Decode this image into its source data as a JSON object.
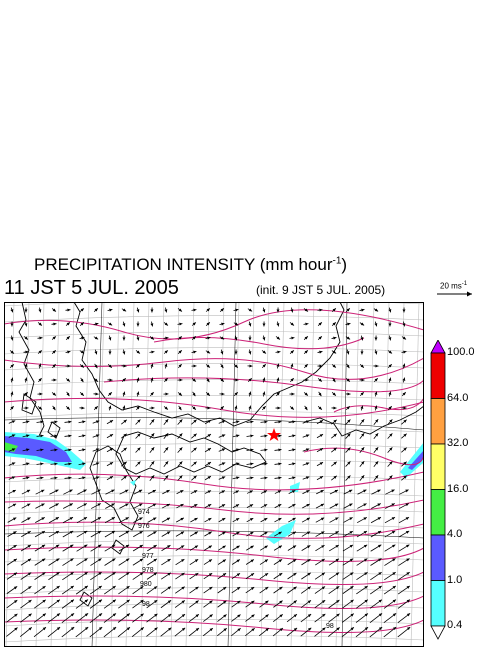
{
  "header": {
    "title": "PRECIPITATION INTENSITY (mm hour",
    "title_exp": "-1",
    "title_close": ")",
    "valid_time": "11 JST 5 JUL. 2005",
    "init_time": "(init. 9 JST 5 JUL. 2005)"
  },
  "wind_reference": {
    "label": "20 ms",
    "label_exp": "-1"
  },
  "colorbar": {
    "levels": [
      "100.0",
      "64.0",
      "32.0",
      "16.0",
      "4.0",
      "1.0",
      "0.4"
    ],
    "colors": [
      "#ee0000",
      "#ffa040",
      "#ffff66",
      "#44ee44",
      "#5a5aff",
      "#55ffff"
    ],
    "top_triangle_color": "#c000ff",
    "bottom_triangle_color": "#ffffff"
  },
  "map": {
    "isobar_labels": [
      "974",
      "976",
      "977",
      "978",
      "980",
      "98"
    ],
    "marker": "red star"
  }
}
